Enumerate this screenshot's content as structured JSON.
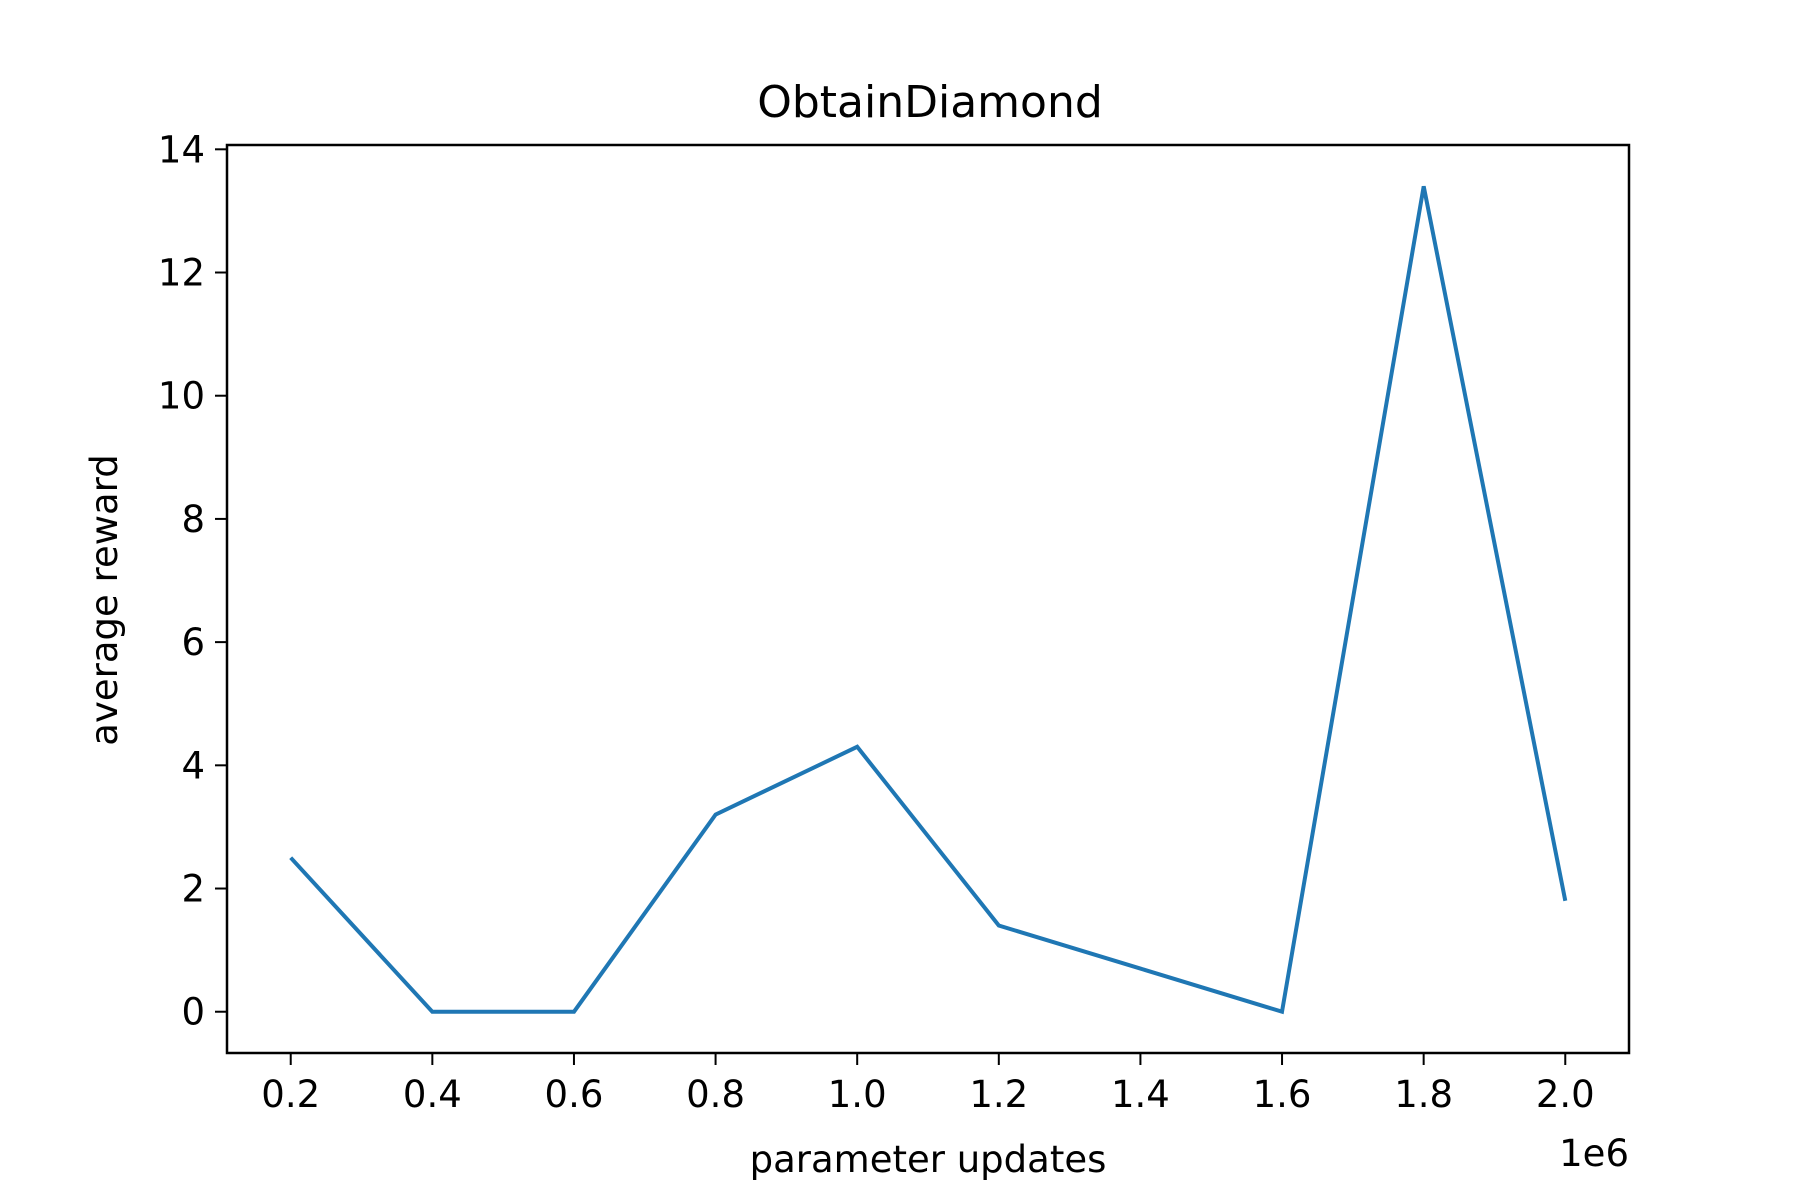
{
  "chart_data": {
    "type": "line",
    "title": "ObtainDiamond",
    "xlabel": "parameter updates",
    "ylabel": "average reward",
    "x_offset_text": "1e6",
    "x_scale": 1000000,
    "x_ticks": [
      0.2,
      0.4,
      0.6,
      0.8,
      1.0,
      1.2,
      1.4,
      1.6,
      1.8,
      2.0
    ],
    "x_tick_labels": [
      "0.2",
      "0.4",
      "0.6",
      "0.8",
      "1.0",
      "1.2",
      "1.4",
      "1.6",
      "1.8",
      "2.0"
    ],
    "y_ticks": [
      0,
      2,
      4,
      6,
      8,
      10,
      12,
      14
    ],
    "y_tick_labels": [
      "0",
      "2",
      "4",
      "6",
      "8",
      "10",
      "12",
      "14"
    ],
    "xlim": [
      0.11,
      2.09
    ],
    "ylim": [
      -0.67,
      14.07
    ],
    "grid": false,
    "legend": "none",
    "series": [
      {
        "color": "#1f77b4",
        "x": [
          0.2,
          0.4,
          0.6,
          0.8,
          1.0,
          1.2,
          1.4,
          1.6,
          1.8,
          2.0
        ],
        "y": [
          2.5,
          0.0,
          0.0,
          3.2,
          4.3,
          1.4,
          0.7,
          0.0,
          13.4,
          1.8
        ]
      }
    ]
  }
}
